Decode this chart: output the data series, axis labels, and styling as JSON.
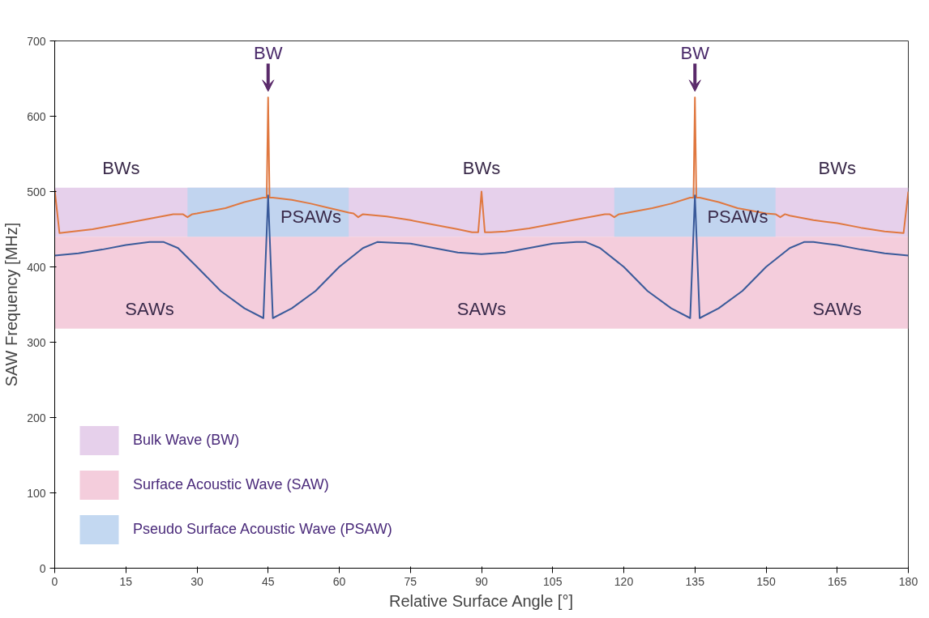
{
  "chart_data": {
    "type": "line",
    "xlabel": "Relative Surface Angle [°]",
    "ylabel": "SAW Frequency [MHz]",
    "xlim": [
      0,
      180
    ],
    "ylim": [
      0,
      700
    ],
    "xticks": [
      0,
      15,
      30,
      45,
      60,
      75,
      90,
      105,
      120,
      135,
      150,
      165,
      180
    ],
    "yticks": [
      0,
      100,
      200,
      300,
      400,
      500,
      600,
      700
    ],
    "grid": false,
    "legend": "bottom left",
    "marker": "none",
    "line_style": "solid",
    "series": [
      {
        "color": "#e07840",
        "x": [
          0,
          1,
          8,
          15,
          25,
          27,
          28,
          29,
          30,
          36,
          40,
          44,
          44.7,
          45,
          45.3,
          46,
          50,
          54,
          58,
          62,
          63,
          64,
          65,
          70,
          75,
          80,
          85,
          88,
          89.3,
          90,
          90.7,
          92,
          95,
          100,
          105,
          110,
          116,
          117,
          118,
          119,
          120,
          126,
          130,
          134,
          134.7,
          135,
          135.3,
          136,
          140,
          144,
          150,
          152,
          153,
          154,
          155,
          160,
          165,
          170,
          175,
          179,
          180
        ],
        "values": [
          502,
          445,
          450,
          458,
          470,
          470,
          466,
          470,
          471,
          478,
          486,
          492,
          492,
          625,
          492,
          492,
          489,
          484,
          478,
          472,
          471,
          466,
          470,
          467,
          462,
          456,
          450,
          446,
          446,
          500,
          446,
          446,
          447,
          451,
          457,
          463,
          470,
          470,
          466,
          470,
          471,
          478,
          484,
          492,
          492,
          625,
          492,
          492,
          486,
          478,
          471,
          470,
          466,
          470,
          468,
          462,
          458,
          452,
          447,
          445,
          500
        ]
      },
      {
        "color": "#3a5a9a",
        "x": [
          0,
          5,
          10,
          15,
          20,
          23,
          26,
          30,
          35,
          40,
          44,
          45,
          46,
          50,
          55,
          60,
          65,
          68,
          75,
          80,
          85,
          90,
          95,
          100,
          105,
          110,
          112,
          115,
          120,
          125,
          130,
          134,
          135,
          136,
          140,
          145,
          150,
          155,
          158,
          160,
          165,
          170,
          175,
          180
        ],
        "values": [
          415,
          418,
          423,
          429,
          433,
          433,
          425,
          400,
          368,
          345,
          332,
          495,
          332,
          345,
          368,
          400,
          425,
          433,
          431,
          425,
          419,
          417,
          419,
          425,
          431,
          433,
          433,
          425,
          400,
          368,
          345,
          332,
          495,
          332,
          345,
          368,
          400,
          425,
          433,
          433,
          429,
          423,
          418,
          415
        ]
      }
    ],
    "bands": [
      {
        "axis": "y",
        "from": 440,
        "to": 505,
        "label": "Bulk Wave (BW)",
        "color": "#e2c8e8"
      },
      {
        "axis": "y",
        "from": 318,
        "to": 440,
        "label": "Surface Acoustic Wave (SAW)",
        "color": "#f2c4d6"
      },
      {
        "axis": "x",
        "from": 28,
        "to": 62,
        "label": "Pseudo Surface Acoustic Wave (PSAW)",
        "color": "#bcd4f0"
      },
      {
        "axis": "x",
        "from": 118,
        "to": 152,
        "color": "#bcd4f0"
      }
    ],
    "annotations": [
      {
        "text": "BW",
        "x": 45,
        "y": 625
      },
      {
        "text": "BW",
        "x": 135,
        "y": 625
      },
      {
        "text": "BWs",
        "x": 14,
        "y": 505
      },
      {
        "text": "BWs",
        "x": 90,
        "y": 505
      },
      {
        "text": "BWs",
        "x": 165,
        "y": 505
      },
      {
        "text": "PSAWs",
        "x": 54,
        "y": 440
      },
      {
        "text": "PSAWs",
        "x": 144,
        "y": 440
      },
      {
        "text": "SAWs",
        "x": 20,
        "y": 318
      },
      {
        "text": "SAWs",
        "x": 90,
        "y": 318
      },
      {
        "text": "SAWs",
        "x": 165,
        "y": 318
      }
    ]
  }
}
